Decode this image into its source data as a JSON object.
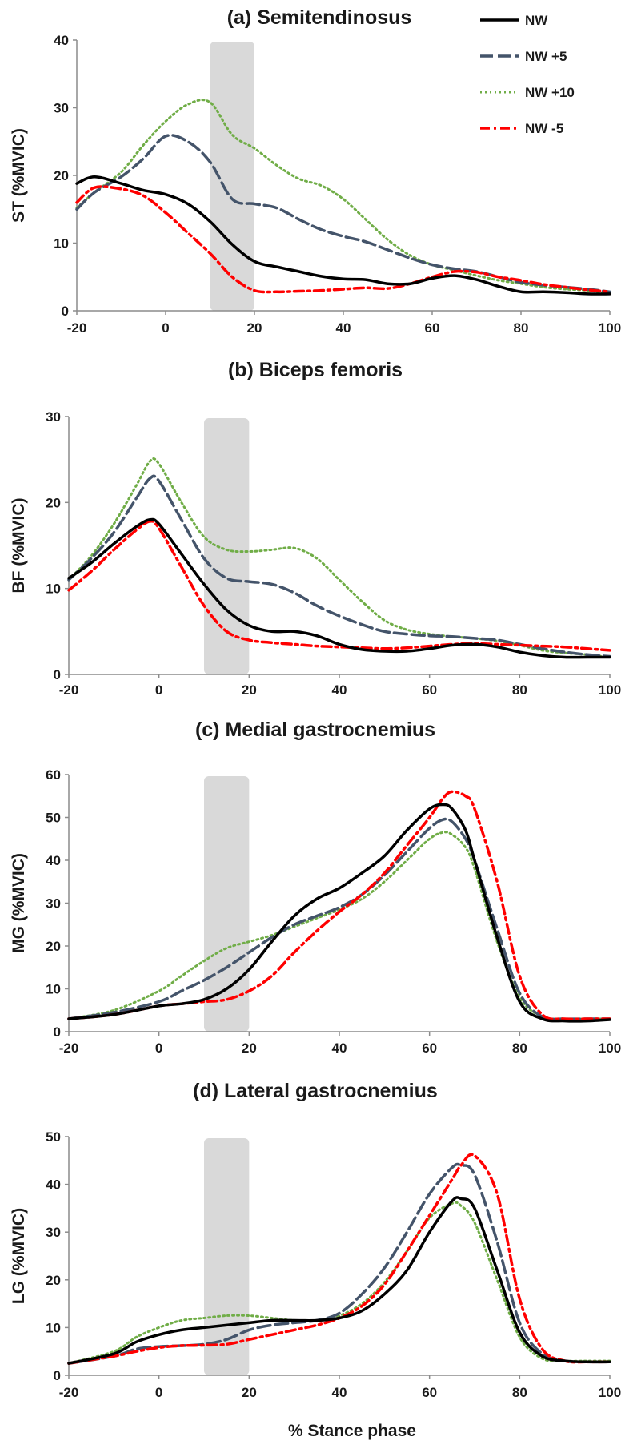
{
  "figure_xlabel": "% Stance phase",
  "legend": {
    "placement": "top-right",
    "entries": [
      "NW",
      "NW +5",
      "NW +10",
      "NW -5"
    ]
  },
  "series_styles": [
    {
      "name": "NW",
      "color": "#000000",
      "dash": "solid"
    },
    {
      "name": "NW +5",
      "color": "#44546A",
      "dash": "long-dash"
    },
    {
      "name": "NW +10",
      "color": "#70AD47",
      "dash": "dot"
    },
    {
      "name": "NW -5",
      "color": "#FF0000",
      "dash": "dash-dot"
    }
  ],
  "highlight_color": "#D9D9D9",
  "chart_data": [
    {
      "type": "line",
      "title": "(a) Semitendinosus",
      "ylabel": "ST (%MVIC)",
      "xlim": [
        -20,
        100
      ],
      "ylim": [
        0,
        40
      ],
      "xticks": [
        -20,
        0,
        20,
        40,
        60,
        80,
        100
      ],
      "yticks": [
        0,
        10,
        20,
        30,
        40
      ],
      "highlight_band": [
        10,
        20
      ],
      "x": [
        -20,
        -16,
        -10,
        -5,
        0,
        5,
        10,
        15,
        20,
        25,
        30,
        35,
        40,
        45,
        50,
        55,
        60,
        65,
        70,
        75,
        80,
        85,
        90,
        95,
        100
      ],
      "series": [
        {
          "name": "NW",
          "values": [
            18.8,
            19.8,
            18.8,
            17.8,
            17.2,
            15.8,
            13.2,
            9.8,
            7.3,
            6.5,
            5.8,
            5.1,
            4.7,
            4.6,
            4.0,
            4.0,
            4.8,
            5.2,
            4.6,
            3.6,
            2.8,
            2.8,
            2.7,
            2.5,
            2.5
          ]
        },
        {
          "name": "NW +5",
          "values": [
            15.0,
            17.5,
            19.8,
            22.5,
            25.8,
            25.0,
            22.0,
            16.5,
            15.8,
            15.2,
            13.5,
            12.0,
            11.0,
            10.2,
            9.0,
            7.8,
            6.8,
            6.2,
            5.8,
            5.0,
            4.2,
            3.8,
            3.5,
            3.2,
            2.8
          ]
        },
        {
          "name": "NW +10",
          "values": [
            15.2,
            17.5,
            20.5,
            24.5,
            28.0,
            30.5,
            30.8,
            26.0,
            24.0,
            21.5,
            19.5,
            18.5,
            16.5,
            13.5,
            10.5,
            8.2,
            6.8,
            6.0,
            5.2,
            4.5,
            4.0,
            3.5,
            3.2,
            3.0,
            2.5
          ]
        },
        {
          "name": "NW -5",
          "values": [
            16.0,
            18.2,
            18.0,
            17.0,
            14.5,
            11.5,
            8.5,
            5.0,
            3.0,
            2.8,
            2.9,
            3.0,
            3.2,
            3.4,
            3.3,
            4.0,
            5.0,
            5.8,
            5.7,
            5.0,
            4.5,
            3.9,
            3.5,
            3.1,
            2.8
          ]
        }
      ]
    },
    {
      "type": "line",
      "title": "(b) Biceps femoris",
      "ylabel": "BF (%MVIC)",
      "xlim": [
        -20,
        100
      ],
      "ylim": [
        0,
        30
      ],
      "xticks": [
        -20,
        0,
        20,
        40,
        60,
        80,
        100
      ],
      "yticks": [
        0,
        10,
        20,
        30
      ],
      "highlight_band": [
        10,
        20
      ],
      "x": [
        -20,
        -15,
        -10,
        -5,
        -2,
        0,
        5,
        10,
        15,
        20,
        25,
        30,
        35,
        40,
        45,
        50,
        55,
        60,
        65,
        70,
        75,
        80,
        85,
        90,
        95,
        100
      ],
      "series": [
        {
          "name": "NW",
          "values": [
            11.2,
            13.0,
            15.2,
            17.2,
            18.0,
            17.5,
            14.0,
            10.5,
            7.5,
            5.7,
            5.0,
            5.0,
            4.5,
            3.5,
            2.9,
            2.7,
            2.7,
            3.0,
            3.4,
            3.5,
            3.2,
            2.6,
            2.2,
            2.0,
            2.0,
            2.0
          ]
        },
        {
          "name": "NW +5",
          "values": [
            11.0,
            13.5,
            16.5,
            20.5,
            22.8,
            22.5,
            18.0,
            13.5,
            11.2,
            10.8,
            10.5,
            9.5,
            8.0,
            6.8,
            5.8,
            5.0,
            4.7,
            4.5,
            4.4,
            4.2,
            4.0,
            3.5,
            3.0,
            2.6,
            2.3,
            2.1
          ]
        },
        {
          "name": "NW +10",
          "values": [
            11.0,
            13.8,
            17.5,
            22.0,
            24.8,
            24.5,
            20.0,
            16.0,
            14.5,
            14.3,
            14.5,
            14.7,
            13.5,
            11.0,
            8.5,
            6.3,
            5.2,
            4.7,
            4.4,
            4.2,
            3.9,
            3.4,
            2.8,
            2.5,
            2.3,
            2.0
          ]
        },
        {
          "name": "NW -5",
          "values": [
            9.8,
            12.0,
            14.5,
            16.8,
            17.8,
            17.0,
            12.5,
            8.0,
            5.0,
            4.0,
            3.7,
            3.5,
            3.3,
            3.2,
            3.1,
            3.0,
            3.1,
            3.3,
            3.5,
            3.6,
            3.5,
            3.4,
            3.3,
            3.2,
            3.0,
            2.8
          ]
        }
      ]
    },
    {
      "type": "line",
      "title": "(c) Medial gastrocnemius",
      "ylabel": "MG (%MVIC)",
      "xlim": [
        -20,
        100
      ],
      "ylim": [
        0,
        60
      ],
      "xticks": [
        -20,
        0,
        20,
        40,
        60,
        80,
        100
      ],
      "yticks": [
        0,
        10,
        20,
        30,
        40,
        50,
        60
      ],
      "highlight_band": [
        10,
        20
      ],
      "x": [
        -20,
        -10,
        0,
        5,
        10,
        15,
        20,
        25,
        30,
        35,
        40,
        45,
        50,
        55,
        60,
        63,
        65,
        68,
        70,
        75,
        80,
        85,
        90,
        95,
        100
      ],
      "series": [
        {
          "name": "NW",
          "values": [
            3.0,
            4.0,
            6.0,
            6.5,
            7.5,
            10.0,
            14.5,
            21.0,
            27.0,
            31.0,
            33.5,
            37.0,
            41.0,
            47.0,
            52.0,
            53.0,
            52.0,
            47.0,
            40.0,
            22.0,
            7.0,
            3.0,
            2.5,
            2.5,
            2.8
          ]
        },
        {
          "name": "NW +5",
          "values": [
            3.0,
            4.5,
            7.0,
            9.5,
            12.0,
            15.0,
            18.5,
            22.0,
            25.0,
            27.0,
            29.0,
            32.0,
            36.5,
            42.0,
            47.5,
            49.5,
            49.0,
            45.0,
            40.0,
            24.0,
            9.0,
            3.5,
            3.0,
            3.0,
            3.0
          ]
        },
        {
          "name": "NW +10",
          "values": [
            3.0,
            5.0,
            9.5,
            13.0,
            16.5,
            19.5,
            21.0,
            22.5,
            24.5,
            26.5,
            28.5,
            31.0,
            35.0,
            40.0,
            45.0,
            46.5,
            46.0,
            43.0,
            38.0,
            21.0,
            8.0,
            3.5,
            3.0,
            3.0,
            3.0
          ]
        },
        {
          "name": "NW -5",
          "values": [
            3.0,
            4.0,
            6.0,
            6.5,
            7.0,
            7.5,
            9.5,
            13.0,
            18.5,
            23.5,
            28.0,
            32.0,
            37.0,
            43.5,
            50.0,
            54.5,
            56.0,
            55.0,
            52.0,
            35.0,
            13.0,
            4.0,
            3.0,
            3.0,
            3.0
          ]
        }
      ]
    },
    {
      "type": "line",
      "title": "(d) Lateral gastrocnemius",
      "ylabel": "LG (%MVIC)",
      "xlim": [
        -20,
        100
      ],
      "ylim": [
        0,
        50
      ],
      "xticks": [
        -20,
        0,
        20,
        40,
        60,
        80,
        100
      ],
      "yticks": [
        0,
        10,
        20,
        30,
        40,
        50
      ],
      "highlight_band": [
        10,
        20
      ],
      "x": [
        -20,
        -10,
        -5,
        0,
        5,
        10,
        15,
        20,
        25,
        30,
        35,
        40,
        45,
        50,
        55,
        60,
        65,
        67,
        70,
        75,
        80,
        85,
        90,
        95,
        100
      ],
      "series": [
        {
          "name": "NW",
          "values": [
            2.5,
            4.5,
            7.0,
            8.5,
            9.5,
            10.0,
            10.5,
            11.0,
            11.5,
            11.5,
            11.5,
            12.0,
            13.5,
            17.0,
            22.0,
            30.0,
            36.5,
            37.0,
            35.0,
            22.0,
            9.0,
            4.0,
            3.0,
            2.8,
            2.8
          ]
        },
        {
          "name": "NW +5",
          "values": [
            2.5,
            4.0,
            5.5,
            6.0,
            6.2,
            6.5,
            7.5,
            9.5,
            10.5,
            11.0,
            11.5,
            13.0,
            17.0,
            22.5,
            30.0,
            38.0,
            43.5,
            44.0,
            42.0,
            28.0,
            11.0,
            4.5,
            3.0,
            2.8,
            2.8
          ]
        },
        {
          "name": "NW +10",
          "values": [
            2.5,
            5.0,
            8.0,
            10.0,
            11.5,
            12.0,
            12.5,
            12.5,
            12.0,
            11.5,
            11.5,
            12.5,
            15.0,
            19.5,
            26.0,
            33.0,
            36.0,
            35.5,
            32.0,
            20.0,
            8.0,
            3.5,
            3.0,
            3.0,
            3.0
          ]
        },
        {
          "name": "NW -5",
          "values": [
            2.5,
            4.0,
            5.0,
            5.8,
            6.2,
            6.3,
            6.5,
            7.5,
            8.5,
            9.5,
            10.5,
            12.0,
            14.5,
            19.0,
            26.0,
            33.5,
            41.0,
            44.0,
            46.0,
            38.0,
            16.0,
            5.5,
            3.0,
            2.8,
            2.8
          ]
        }
      ]
    }
  ]
}
